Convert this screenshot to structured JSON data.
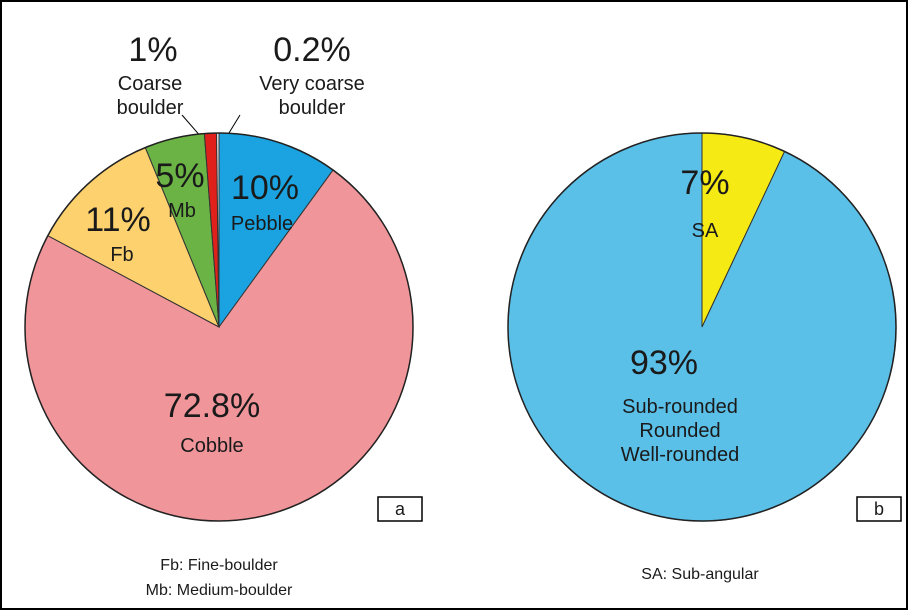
{
  "chart_data": [
    {
      "type": "pie",
      "categories": [
        "Pebble",
        "Cobble",
        "Fb",
        "Mb",
        "Coarse\nboulder",
        "Very coarse\nboulder"
      ],
      "values": [
        10,
        72.8,
        11,
        5,
        1,
        0.2
      ],
      "value_labels": [
        "10%",
        "72.8%",
        "11%",
        "5%",
        "1%",
        "0.2%"
      ],
      "colors": [
        "#1aa3e0",
        "#f0959a",
        "#fdd26e",
        "#6ab344",
        "#e0201b",
        "#eeeeee"
      ],
      "panel_label": "a",
      "notes": [
        "Fb: Fine-boulder",
        "Mb: Medium-boulder"
      ]
    },
    {
      "type": "pie",
      "categories": [
        "SA",
        "Sub-rounded\nRounded\nWell-rounded"
      ],
      "values": [
        7,
        93
      ],
      "value_labels": [
        "7%",
        "93%"
      ],
      "colors": [
        "#f5ea14",
        "#5bc0e8"
      ],
      "panel_label": "b",
      "notes": [
        "SA: Sub-angular"
      ]
    }
  ]
}
